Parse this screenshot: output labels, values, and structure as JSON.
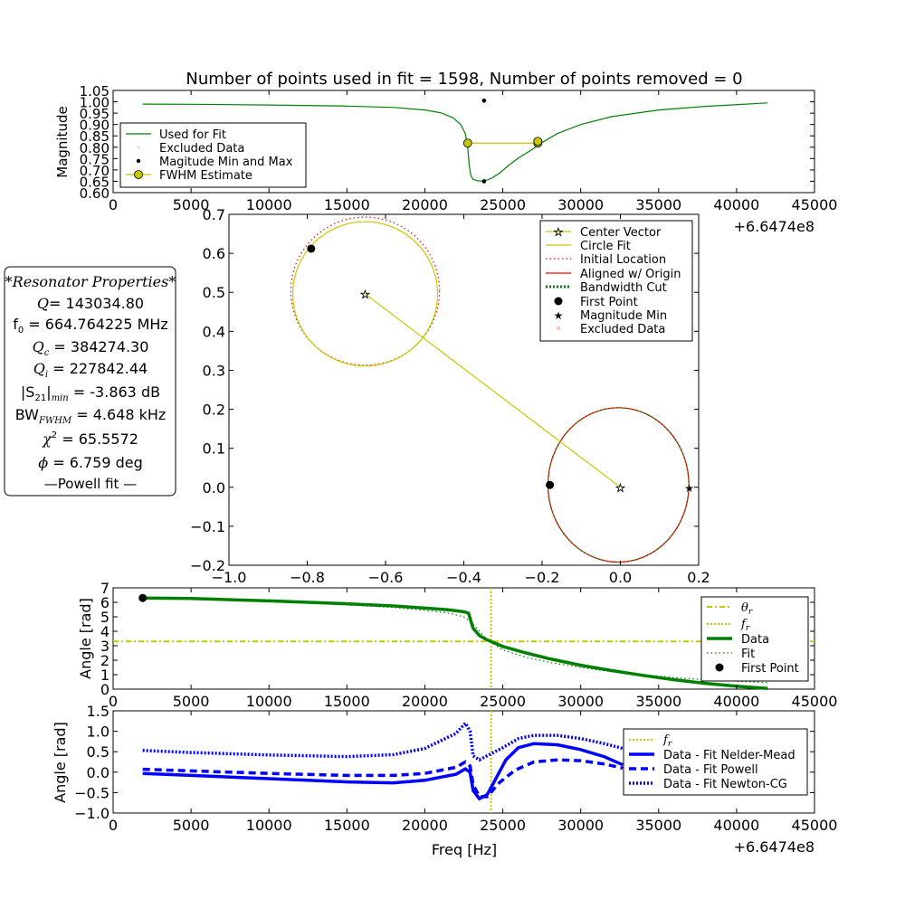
{
  "chart_data": [
    {
      "id": "magnitude",
      "type": "line",
      "title": "Number of points used in fit = 1598, Number of points removed = 0",
      "ylabel": "Magnitude",
      "xlabel": "",
      "offset_text": "+6.6474e8",
      "xlim": [
        0,
        45000
      ],
      "ylim": [
        0.6,
        1.05
      ],
      "xticks": [
        0,
        5000,
        10000,
        15000,
        20000,
        25000,
        30000,
        35000,
        40000,
        45000
      ],
      "yticks": [
        0.6,
        0.65,
        0.7,
        0.75,
        0.8,
        0.85,
        0.9,
        0.95,
        1.0,
        1.05
      ],
      "ytick_labels": [
        "0.60",
        "0.65",
        "0.70",
        "0.75",
        "0.80",
        "0.85",
        "0.90",
        "0.95",
        "1.00",
        "1.05"
      ],
      "legend": {
        "position": "bottom-left",
        "entries": [
          "Used for Fit",
          "Excluded Data",
          "Magitude Min and Max",
          "FWHM Estimate"
        ]
      },
      "series": [
        {
          "name": "Used for Fit",
          "color": "#008000",
          "points": [
            [
              1900,
              0.99
            ],
            [
              5000,
              0.989
            ],
            [
              10000,
              0.986
            ],
            [
              15000,
              0.981
            ],
            [
              18000,
              0.975
            ],
            [
              20000,
              0.964
            ],
            [
              21000,
              0.952
            ],
            [
              21800,
              0.93
            ],
            [
              22300,
              0.9
            ],
            [
              22600,
              0.86
            ],
            [
              22750,
              0.8
            ],
            [
              22850,
              0.72
            ],
            [
              22950,
              0.675
            ],
            [
              23100,
              0.658
            ],
            [
              23400,
              0.652
            ],
            [
              23800,
              0.65
            ],
            [
              24300,
              0.664
            ],
            [
              24800,
              0.686
            ],
            [
              25300,
              0.716
            ],
            [
              26000,
              0.752
            ],
            [
              26800,
              0.786
            ],
            [
              27500,
              0.82
            ],
            [
              28500,
              0.86
            ],
            [
              30000,
              0.9
            ],
            [
              32000,
              0.935
            ],
            [
              35000,
              0.964
            ],
            [
              38000,
              0.98
            ],
            [
              42000,
              0.995
            ]
          ]
        },
        {
          "name": "Magitude Min and Max",
          "color": "#000000",
          "markers": [
            [
              23800,
              0.65
            ],
            [
              23800,
              1.005
            ]
          ]
        },
        {
          "name": "FWHM Estimate",
          "color": "#c8c800",
          "markers": [
            [
              22750,
              0.818
            ],
            [
              27250,
              0.818
            ],
            [
              27250,
              0.826
            ]
          ]
        }
      ]
    },
    {
      "id": "iq-plane",
      "type": "line",
      "xlim": [
        -1.0,
        0.2
      ],
      "ylim": [
        -0.2,
        0.7
      ],
      "xticks": [
        -1.0,
        -0.8,
        -0.6,
        -0.4,
        -0.2,
        0.0,
        0.2
      ],
      "xtick_labels": [
        "−1.0",
        "−0.8",
        "−0.6",
        "−0.4",
        "−0.2",
        "0.0",
        "0.2"
      ],
      "yticks": [
        -0.2,
        -0.1,
        0.0,
        0.1,
        0.2,
        0.3,
        0.4,
        0.5,
        0.6,
        0.7
      ],
      "ytick_labels": [
        "−0.2",
        "−0.1",
        "0.0",
        "0.1",
        "0.2",
        "0.3",
        "0.4",
        "0.5",
        "0.6",
        "0.7"
      ],
      "legend": {
        "position": "top-right",
        "entries": [
          "Center Vector",
          "Circle Fit",
          "Initial Location",
          "Aligned w/ Origin",
          "Bandwidth Cut",
          "First Point",
          "Magnitude Min",
          "Excluded Data"
        ]
      },
      "circles": [
        {
          "name": "Circle Fit",
          "center": [
            -0.652,
            0.496
          ],
          "r": 0.185,
          "color": "#c8c800"
        },
        {
          "name": "Initial Location",
          "center": [
            -0.652,
            0.503
          ],
          "r": 0.19,
          "color": "#ff0000"
        },
        {
          "name": "Aligned w/ Origin",
          "center": [
            -0.005,
            0.006
          ],
          "r": 0.18,
          "color": "#ff0000"
        },
        {
          "name": "Bandwidth Cut",
          "center": [
            -0.005,
            0.006
          ],
          "r": 0.18,
          "color": "#008000"
        }
      ],
      "center_vector": [
        [
          -0.652,
          0.496
        ],
        [
          0.0,
          0.0
        ]
      ],
      "first_points": [
        [
          -0.79,
          0.612
        ],
        [
          -0.18,
          0.006
        ]
      ],
      "magnitude_min": [
        0.176,
        0.0
      ]
    },
    {
      "id": "phase",
      "type": "line",
      "ylabel": "Angle [rad]",
      "offset_text": "",
      "xlim": [
        0,
        45000
      ],
      "ylim": [
        0,
        7
      ],
      "xticks": [
        0,
        5000,
        10000,
        15000,
        20000,
        25000,
        30000,
        35000,
        40000,
        45000
      ],
      "yticks": [
        0,
        1,
        2,
        3,
        4,
        5,
        6,
        7
      ],
      "legend": {
        "position": "top-right",
        "entries": [
          "θ_r",
          "f_r",
          "Data",
          "Fit",
          "First Point"
        ]
      },
      "theta_r": 3.3,
      "f_r": 24250,
      "series": [
        {
          "name": "Data",
          "color": "#008000",
          "points": [
            [
              1900,
              6.3
            ],
            [
              5000,
              6.26
            ],
            [
              10000,
              6.1
            ],
            [
              15000,
              5.9
            ],
            [
              18000,
              5.75
            ],
            [
              20000,
              5.6
            ],
            [
              21500,
              5.48
            ],
            [
              22500,
              5.35
            ],
            [
              22800,
              5.25
            ],
            [
              22900,
              4.9
            ],
            [
              23100,
              4.2
            ],
            [
              23500,
              3.7
            ],
            [
              24000,
              3.4
            ],
            [
              25000,
              2.95
            ],
            [
              26500,
              2.5
            ],
            [
              28000,
              2.1
            ],
            [
              30000,
              1.65
            ],
            [
              32000,
              1.28
            ],
            [
              34000,
              0.95
            ],
            [
              36000,
              0.65
            ],
            [
              38000,
              0.4
            ],
            [
              40000,
              0.2
            ],
            [
              42000,
              0.05
            ]
          ]
        },
        {
          "name": "Fit",
          "color": "#008000",
          "points": [
            [
              1900,
              6.28
            ],
            [
              5000,
              6.22
            ],
            [
              10000,
              6.05
            ],
            [
              15000,
              5.82
            ],
            [
              18000,
              5.65
            ],
            [
              20000,
              5.45
            ],
            [
              21500,
              5.25
            ],
            [
              22500,
              5.0
            ],
            [
              23000,
              4.6
            ],
            [
              23500,
              4.0
            ],
            [
              24000,
              3.4
            ],
            [
              25000,
              2.7
            ],
            [
              26500,
              2.2
            ],
            [
              28000,
              1.85
            ],
            [
              30000,
              1.5
            ],
            [
              32000,
              1.2
            ],
            [
              34000,
              0.98
            ],
            [
              36000,
              0.8
            ],
            [
              38000,
              0.65
            ],
            [
              40000,
              0.55
            ],
            [
              42000,
              0.45
            ]
          ]
        },
        {
          "name": "First Point",
          "color": "#000000",
          "markers": [
            [
              1900,
              6.3
            ]
          ]
        }
      ]
    },
    {
      "id": "residuals",
      "type": "line",
      "ylabel": "Angle [rad]",
      "xlabel": "Freq [Hz]",
      "offset_text": "+6.6474e8",
      "xlim": [
        0,
        45000
      ],
      "ylim": [
        -1.0,
        1.5
      ],
      "xticks": [
        0,
        5000,
        10000,
        15000,
        20000,
        25000,
        30000,
        35000,
        40000,
        45000
      ],
      "yticks": [
        -1.0,
        -0.5,
        0.0,
        0.5,
        1.0,
        1.5
      ],
      "ytick_labels": [
        "−1.0",
        "−0.5",
        "0.0",
        "0.5",
        "1.0",
        "1.5"
      ],
      "legend": {
        "position": "top-right",
        "entries": [
          "f_r",
          "Data - Fit Nelder-Mead",
          "Data - Fit Powell",
          "Data - Fit Newton-CG"
        ]
      },
      "f_r": 24250,
      "series": [
        {
          "name": "Data - Fit Nelder-Mead",
          "color": "#0000ff",
          "style": "solid",
          "points": [
            [
              1900,
              -0.03
            ],
            [
              5000,
              -0.08
            ],
            [
              10000,
              -0.16
            ],
            [
              15000,
              -0.24
            ],
            [
              18000,
              -0.26
            ],
            [
              20000,
              -0.2
            ],
            [
              22000,
              -0.05
            ],
            [
              22600,
              0.08
            ],
            [
              22900,
              0.0
            ],
            [
              23100,
              -0.45
            ],
            [
              23500,
              -0.65
            ],
            [
              24000,
              -0.55
            ],
            [
              24500,
              -0.2
            ],
            [
              25200,
              0.3
            ],
            [
              26000,
              0.6
            ],
            [
              27000,
              0.7
            ],
            [
              28500,
              0.67
            ],
            [
              30000,
              0.55
            ],
            [
              31500,
              0.38
            ],
            [
              32700,
              0.18
            ]
          ]
        },
        {
          "name": "Data - Fit Powell",
          "color": "#0000ff",
          "style": "dashed",
          "points": [
            [
              1900,
              0.07
            ],
            [
              5000,
              0.03
            ],
            [
              10000,
              -0.03
            ],
            [
              15000,
              -0.08
            ],
            [
              18000,
              -0.08
            ],
            [
              20000,
              -0.03
            ],
            [
              22000,
              0.12
            ],
            [
              22600,
              0.25
            ],
            [
              22900,
              0.15
            ],
            [
              23100,
              -0.3
            ],
            [
              23500,
              -0.6
            ],
            [
              24000,
              -0.6
            ],
            [
              24800,
              -0.25
            ],
            [
              25800,
              0.05
            ],
            [
              27000,
              0.25
            ],
            [
              28500,
              0.3
            ],
            [
              30000,
              0.28
            ],
            [
              31500,
              0.2
            ],
            [
              32700,
              0.1
            ]
          ]
        },
        {
          "name": "Data - Fit Newton-CG",
          "color": "#0000ff",
          "style": "dotted",
          "points": [
            [
              1900,
              0.53
            ],
            [
              5000,
              0.48
            ],
            [
              10000,
              0.42
            ],
            [
              15000,
              0.38
            ],
            [
              18000,
              0.43
            ],
            [
              20000,
              0.58
            ],
            [
              22000,
              0.95
            ],
            [
              22600,
              1.2
            ],
            [
              22900,
              1.0
            ],
            [
              23100,
              0.4
            ],
            [
              23500,
              0.3
            ],
            [
              24000,
              0.4
            ],
            [
              25000,
              0.6
            ],
            [
              26000,
              0.82
            ],
            [
              27000,
              0.9
            ],
            [
              28500,
              0.9
            ],
            [
              30000,
              0.82
            ],
            [
              31500,
              0.7
            ],
            [
              32700,
              0.58
            ]
          ]
        }
      ]
    }
  ],
  "resonator_properties": {
    "heading": "*Resonator Properties*",
    "q_label": "Q",
    "q_value": "= 143034.80",
    "f0_label": "f",
    "f0_sub": "0",
    "f0_value": " = 664.764225 MHz",
    "qc_label": "Q",
    "qc_sub": "c",
    "qc_value": " = 384274.30",
    "qi_label": "Q",
    "qi_sub": "i",
    "qi_value": " = 227842.44",
    "s21_label": "|S",
    "s21_sub": "21",
    "s21_mid": "|",
    "s21_sub2": "min",
    "s21_value": " = -3.863 dB",
    "bw_label": "BW",
    "bw_sub": "FWHM",
    "bw_value": " = 4.648 kHz",
    "chi_label": "χ",
    "chi_sup": "2",
    "chi_value": " = 65.5572",
    "phi_label": "ϕ",
    "phi_value": " = 6.759 deg",
    "method": "—Powell fit —"
  }
}
